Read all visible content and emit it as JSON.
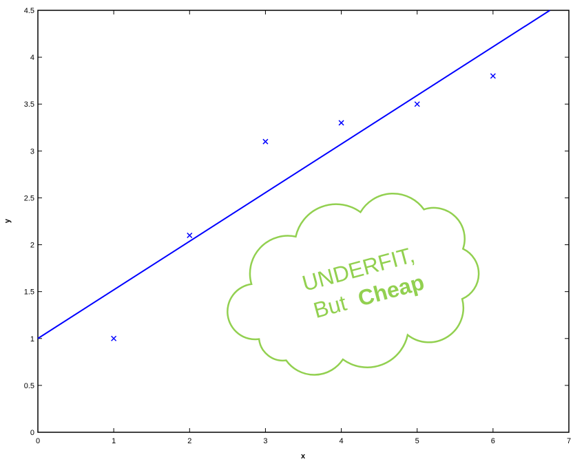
{
  "chart_data": {
    "type": "scatter",
    "xlabel": "x",
    "ylabel": "y",
    "xlim": [
      0,
      7
    ],
    "ylim": [
      0,
      4.5
    ],
    "xticks": [
      0,
      1,
      2,
      3,
      4,
      5,
      6,
      7
    ],
    "yticks": [
      0,
      0.5,
      1,
      1.5,
      2,
      2.5,
      3,
      3.5,
      4,
      4.5
    ],
    "series": [
      {
        "type": "scatter",
        "color": "#0000ff",
        "x": [
          1,
          2,
          3,
          4,
          5,
          6
        ],
        "values": [
          1,
          2.1,
          3.1,
          3.3,
          3.5,
          3.8
        ]
      },
      {
        "type": "line",
        "color": "#0000ff",
        "x": [
          0,
          6.75
        ],
        "values": [
          1,
          4.5
        ]
      }
    ],
    "annotation": {
      "color": "#92d050",
      "lines": [
        "UNDERFIT,",
        "But",
        "Cheap"
      ]
    }
  }
}
